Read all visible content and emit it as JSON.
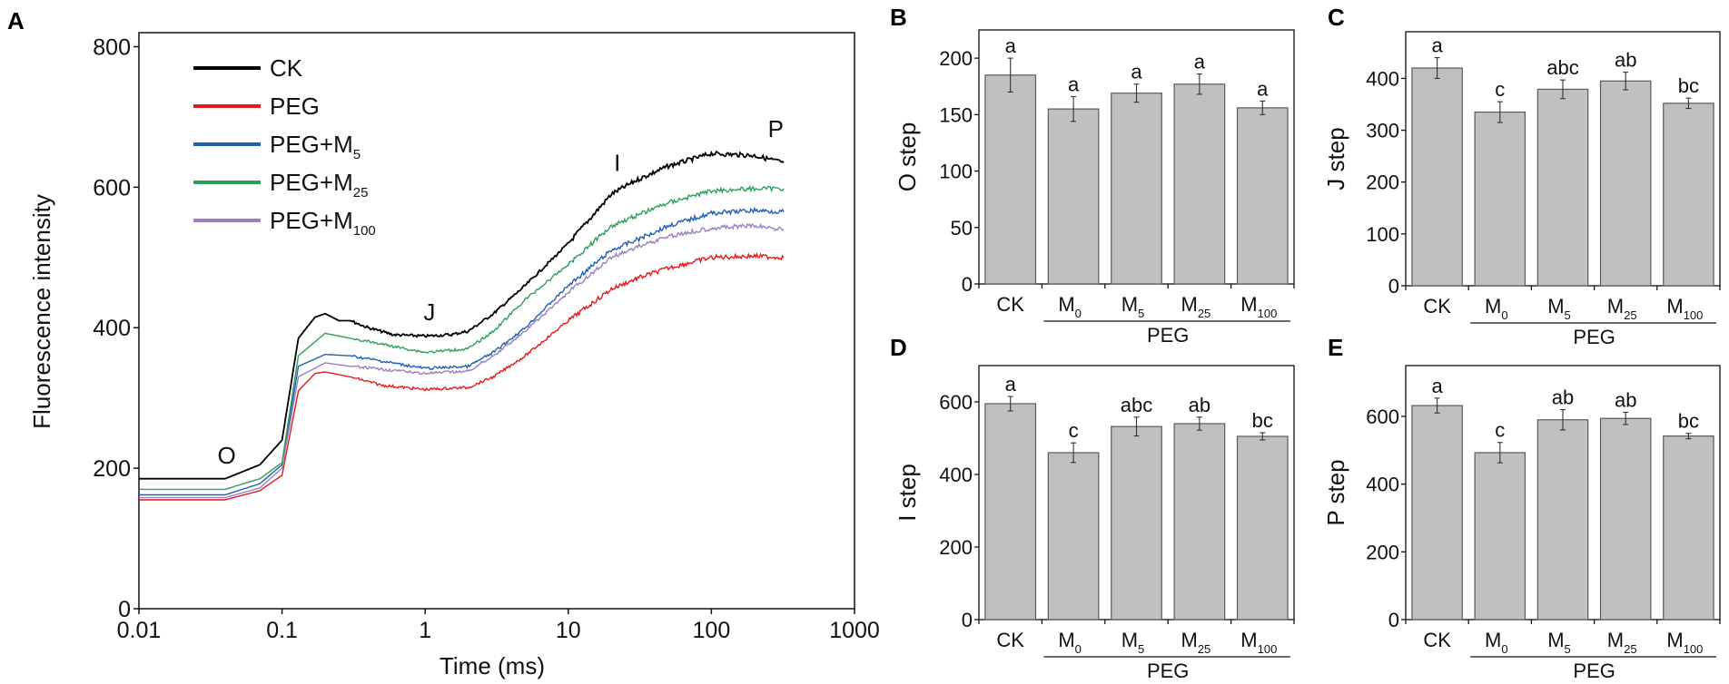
{
  "chart_data": [
    {
      "panel": "A",
      "type": "line",
      "xlabel": "Time (ms)",
      "ylabel": "Fluorescence intensity",
      "xscale": "log",
      "xlim": [
        0.01,
        1000
      ],
      "ylim": [
        0,
        820
      ],
      "xticks": [
        "0.01",
        "0.1",
        "1",
        "10",
        "100",
        "1000"
      ],
      "xtick_values": [
        0.01,
        0.1,
        1,
        10,
        100,
        1000
      ],
      "yticks": [
        0,
        200,
        400,
        600,
        800
      ],
      "legend_position": "top-left",
      "annotations": [
        {
          "text": "O",
          "x": 0.041,
          "y": 218
        },
        {
          "text": "J",
          "x": 1.07,
          "y": 422
        },
        {
          "text": "I",
          "x": 22,
          "y": 635
        },
        {
          "text": "P",
          "x": 282,
          "y": 683
        }
      ],
      "series": [
        {
          "name": "CK",
          "name_base": "CK",
          "name_sub": "",
          "color": "#000000",
          "points": [
            [
              0.01,
              185
            ],
            [
              0.04,
              185
            ],
            [
              0.07,
              205
            ],
            [
              0.1,
              240
            ],
            [
              0.13,
              385
            ],
            [
              0.17,
              415
            ],
            [
              0.2,
              420
            ],
            [
              0.25,
              410
            ],
            [
              0.3,
              410
            ],
            [
              0.4,
              400
            ],
            [
              0.6,
              390
            ],
            [
              1,
              388
            ],
            [
              1.5,
              390
            ],
            [
              2,
              395
            ],
            [
              3,
              420
            ],
            [
              5,
              460
            ],
            [
              10,
              520
            ],
            [
              20,
              590
            ],
            [
              30,
              610
            ],
            [
              50,
              630
            ],
            [
              100,
              648
            ],
            [
              200,
              645
            ],
            [
              320,
              635
            ]
          ]
        },
        {
          "name": "PEG",
          "name_base": "PEG",
          "name_sub": "",
          "color": "#e31a1c",
          "points": [
            [
              0.01,
              155
            ],
            [
              0.04,
              155
            ],
            [
              0.07,
              168
            ],
            [
              0.1,
              190
            ],
            [
              0.13,
              310
            ],
            [
              0.17,
              335
            ],
            [
              0.2,
              337
            ],
            [
              0.3,
              330
            ],
            [
              0.5,
              318
            ],
            [
              1,
              312
            ],
            [
              2,
              315
            ],
            [
              3,
              330
            ],
            [
              5,
              360
            ],
            [
              10,
              410
            ],
            [
              20,
              455
            ],
            [
              30,
              470
            ],
            [
              50,
              485
            ],
            [
              100,
              500
            ],
            [
              200,
              502
            ],
            [
              320,
              500
            ]
          ]
        },
        {
          "name": "PEG+M5",
          "name_base": "PEG+M",
          "name_sub": "5",
          "color": "#1f5fb4",
          "points": [
            [
              0.01,
              162
            ],
            [
              0.04,
              162
            ],
            [
              0.07,
              178
            ],
            [
              0.1,
              205
            ],
            [
              0.13,
              345
            ],
            [
              0.2,
              362
            ],
            [
              0.3,
              360
            ],
            [
              1,
              342
            ],
            [
              2,
              345
            ],
            [
              3,
              365
            ],
            [
              5,
              400
            ],
            [
              10,
              460
            ],
            [
              20,
              510
            ],
            [
              30,
              525
            ],
            [
              50,
              545
            ],
            [
              100,
              563
            ],
            [
              200,
              567
            ],
            [
              320,
              565
            ]
          ]
        },
        {
          "name": "PEG+M25",
          "name_base": "PEG+M",
          "name_sub": "25",
          "color": "#2ca05a",
          "points": [
            [
              0.01,
              170
            ],
            [
              0.04,
              170
            ],
            [
              0.07,
              185
            ],
            [
              0.1,
              208
            ],
            [
              0.13,
              360
            ],
            [
              0.2,
              392
            ],
            [
              0.3,
              385
            ],
            [
              1,
              365
            ],
            [
              2,
              370
            ],
            [
              3,
              395
            ],
            [
              5,
              440
            ],
            [
              10,
              490
            ],
            [
              20,
              545
            ],
            [
              30,
              560
            ],
            [
              50,
              578
            ],
            [
              100,
              595
            ],
            [
              200,
              598
            ],
            [
              320,
              598
            ]
          ]
        },
        {
          "name": "PEG+M100",
          "name_base": "PEG+M",
          "name_sub": "100",
          "color": "#9b7fc0",
          "points": [
            [
              0.01,
              158
            ],
            [
              0.04,
              158
            ],
            [
              0.07,
              172
            ],
            [
              0.1,
              200
            ],
            [
              0.13,
              330
            ],
            [
              0.2,
              350
            ],
            [
              0.3,
              345
            ],
            [
              1,
              335
            ],
            [
              2,
              338
            ],
            [
              3,
              360
            ],
            [
              5,
              395
            ],
            [
              10,
              450
            ],
            [
              20,
              500
            ],
            [
              30,
              515
            ],
            [
              50,
              530
            ],
            [
              100,
              542
            ],
            [
              200,
              545
            ],
            [
              320,
              540
            ]
          ]
        }
      ]
    },
    {
      "panel": "B",
      "type": "bar",
      "ylabel": "O step",
      "ylim": [
        0,
        225
      ],
      "yticks": [
        0,
        50,
        100,
        150,
        200
      ],
      "categories": [
        {
          "base": "CK",
          "sub": ""
        },
        {
          "base": "M",
          "sub": "0"
        },
        {
          "base": "M",
          "sub": "5"
        },
        {
          "base": "M",
          "sub": "25"
        },
        {
          "base": "M",
          "sub": "100"
        }
      ],
      "group_label": "PEG",
      "values": [
        185,
        155,
        169,
        177,
        156
      ],
      "errors": [
        15,
        11,
        8,
        9,
        6
      ],
      "letters": [
        "a",
        "a",
        "a",
        "a",
        "a"
      ]
    },
    {
      "panel": "C",
      "type": "bar",
      "ylabel": "J step",
      "ylim": [
        0,
        490
      ],
      "yticks": [
        0,
        100,
        200,
        300,
        400
      ],
      "categories": [
        {
          "base": "CK",
          "sub": ""
        },
        {
          "base": "M",
          "sub": "0"
        },
        {
          "base": "M",
          "sub": "5"
        },
        {
          "base": "M",
          "sub": "25"
        },
        {
          "base": "M",
          "sub": "100"
        }
      ],
      "group_label": "PEG",
      "values": [
        420,
        335,
        379,
        395,
        352
      ],
      "errors": [
        20,
        20,
        18,
        17,
        10
      ],
      "letters": [
        "a",
        "c",
        "abc",
        "ab",
        "bc"
      ]
    },
    {
      "panel": "D",
      "type": "bar",
      "ylabel": "I step",
      "ylim": [
        0,
        700
      ],
      "yticks": [
        0,
        200,
        400,
        600
      ],
      "categories": [
        {
          "base": "CK",
          "sub": ""
        },
        {
          "base": "M",
          "sub": "0"
        },
        {
          "base": "M",
          "sub": "5"
        },
        {
          "base": "M",
          "sub": "25"
        },
        {
          "base": "M",
          "sub": "100"
        }
      ],
      "group_label": "PEG",
      "values": [
        595,
        460,
        532,
        540,
        505
      ],
      "errors": [
        20,
        27,
        26,
        18,
        10
      ],
      "letters": [
        "a",
        "c",
        "abc",
        "ab",
        "bc"
      ]
    },
    {
      "panel": "E",
      "type": "bar",
      "ylabel": "P step",
      "ylim": [
        0,
        750
      ],
      "yticks": [
        0,
        200,
        400,
        600
      ],
      "categories": [
        {
          "base": "CK",
          "sub": ""
        },
        {
          "base": "M",
          "sub": "0"
        },
        {
          "base": "M",
          "sub": "5"
        },
        {
          "base": "M",
          "sub": "25"
        },
        {
          "base": "M",
          "sub": "100"
        }
      ],
      "group_label": "PEG",
      "values": [
        632,
        493,
        590,
        594,
        542
      ],
      "errors": [
        22,
        30,
        30,
        18,
        8
      ],
      "letters": [
        "a",
        "c",
        "ab",
        "ab",
        "bc"
      ]
    }
  ],
  "colors": {
    "bar_fill": "#c0c0c0",
    "bar_stroke": "#5a5a5a",
    "axis": "#111111"
  }
}
